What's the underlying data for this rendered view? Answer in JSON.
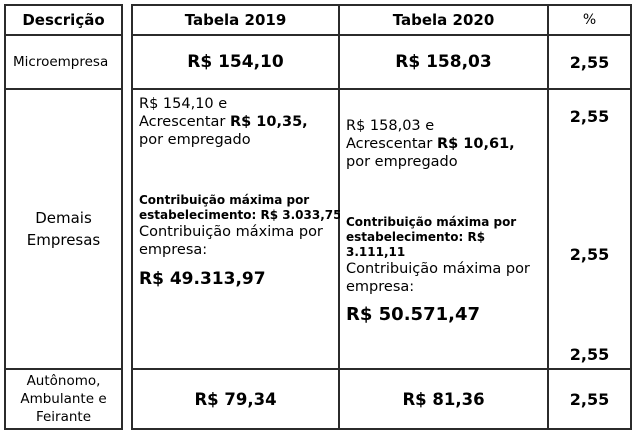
{
  "header": {
    "descricao": "Descrição",
    "tabela2019": "Tabela 2019",
    "tabela2020": "Tabela 2020",
    "percent": "%"
  },
  "rows": {
    "microempresa": {
      "label": "Microempresa",
      "v2019": "R$ 154,10",
      "v2020": "R$ 158,03",
      "pct": "2,55"
    },
    "demais": {
      "label": "Demais Empresas",
      "t2019": {
        "base": "R$ 154,10 e",
        "acrescentar_prefix": "Acrescentar ",
        "acrescentar_value": "R$ 10,35,",
        "por_empregado": "por empregado",
        "max_estab_l1": "Contribuição máxima por",
        "max_estab_l2": "estabelecimento: R$ 3.033,75",
        "max_empresa_l1": "Contribuição máxima por",
        "max_empresa_l2": "empresa:",
        "max_empresa_value": "R$ 49.313,97"
      },
      "t2020": {
        "base": "R$ 158,03 e",
        "acrescentar_prefix": "Acrescentar ",
        "acrescentar_value": "R$ 10,61,",
        "por_empregado": "por empregado",
        "max_estab_l1": "Contribuição máxima por",
        "max_estab_l2": "estabelecimento: R$",
        "max_estab_l3": "3.111,11",
        "max_empresa_l1": "Contribuição máxima por",
        "max_empresa_l2": "empresa:",
        "max_empresa_value": "R$ 50.571,47"
      },
      "pct": [
        "2,55",
        "2,55",
        "2,55"
      ]
    },
    "autonomo": {
      "label": "Autônomo, Ambulante e Feirante",
      "v2019": "R$ 79,34",
      "v2020": "R$ 81,36",
      "pct": "2,55"
    }
  }
}
